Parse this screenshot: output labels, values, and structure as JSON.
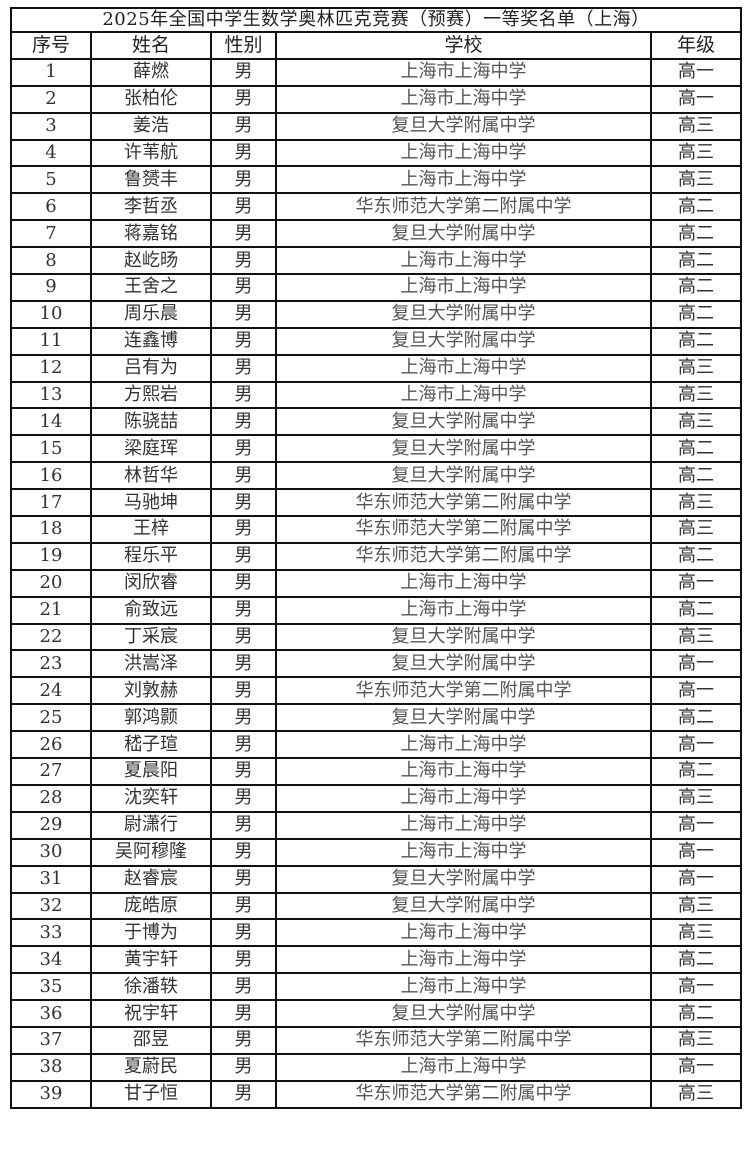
{
  "title": "2025年全国中学生数学奥林匹克竞赛（预赛）一等奖名单（上海）",
  "columns": [
    "序号",
    "姓名",
    "性别",
    "学校",
    "年级"
  ],
  "rows": [
    [
      "1",
      "薛燃",
      "男",
      "上海市上海中学",
      "高一"
    ],
    [
      "2",
      "张柏伦",
      "男",
      "上海市上海中学",
      "高一"
    ],
    [
      "3",
      "姜浩",
      "男",
      "复旦大学附属中学",
      "高三"
    ],
    [
      "4",
      "许苇航",
      "男",
      "上海市上海中学",
      "高三"
    ],
    [
      "5",
      "鲁赟丰",
      "男",
      "上海市上海中学",
      "高三"
    ],
    [
      "6",
      "李哲丞",
      "男",
      "华东师范大学第二附属中学",
      "高二"
    ],
    [
      "7",
      "蒋嘉铭",
      "男",
      "复旦大学附属中学",
      "高二"
    ],
    [
      "8",
      "赵屹旸",
      "男",
      "上海市上海中学",
      "高二"
    ],
    [
      "9",
      "王舍之",
      "男",
      "上海市上海中学",
      "高二"
    ],
    [
      "10",
      "周乐晨",
      "男",
      "复旦大学附属中学",
      "高二"
    ],
    [
      "11",
      "连鑫博",
      "男",
      "复旦大学附属中学",
      "高二"
    ],
    [
      "12",
      "吕有为",
      "男",
      "上海市上海中学",
      "高三"
    ],
    [
      "13",
      "方熙岩",
      "男",
      "上海市上海中学",
      "高三"
    ],
    [
      "14",
      "陈骁喆",
      "男",
      "复旦大学附属中学",
      "高三"
    ],
    [
      "15",
      "梁庭珲",
      "男",
      "复旦大学附属中学",
      "高二"
    ],
    [
      "16",
      "林哲华",
      "男",
      "复旦大学附属中学",
      "高二"
    ],
    [
      "17",
      "马驰坤",
      "男",
      "华东师范大学第二附属中学",
      "高三"
    ],
    [
      "18",
      "王梓",
      "男",
      "华东师范大学第二附属中学",
      "高三"
    ],
    [
      "19",
      "程乐平",
      "男",
      "华东师范大学第二附属中学",
      "高二"
    ],
    [
      "20",
      "闵欣睿",
      "男",
      "上海市上海中学",
      "高一"
    ],
    [
      "21",
      "俞致远",
      "男",
      "上海市上海中学",
      "高二"
    ],
    [
      "22",
      "丁采宸",
      "男",
      "复旦大学附属中学",
      "高三"
    ],
    [
      "23",
      "洪嵩泽",
      "男",
      "复旦大学附属中学",
      "高一"
    ],
    [
      "24",
      "刘敦赫",
      "男",
      "华东师范大学第二附属中学",
      "高一"
    ],
    [
      "25",
      "郭鸿颢",
      "男",
      "复旦大学附属中学",
      "高二"
    ],
    [
      "26",
      "嵇子瑄",
      "男",
      "上海市上海中学",
      "高一"
    ],
    [
      "27",
      "夏晨阳",
      "男",
      "上海市上海中学",
      "高二"
    ],
    [
      "28",
      "沈奕轩",
      "男",
      "上海市上海中学",
      "高三"
    ],
    [
      "29",
      "尉潇行",
      "男",
      "上海市上海中学",
      "高一"
    ],
    [
      "30",
      "吴阿穆隆",
      "男",
      "上海市上海中学",
      "高一"
    ],
    [
      "31",
      "赵睿宸",
      "男",
      "复旦大学附属中学",
      "高一"
    ],
    [
      "32",
      "庞皓原",
      "男",
      "复旦大学附属中学",
      "高三"
    ],
    [
      "33",
      "于博为",
      "男",
      "上海市上海中学",
      "高三"
    ],
    [
      "34",
      "黄宇轩",
      "男",
      "上海市上海中学",
      "高二"
    ],
    [
      "35",
      "徐潘轶",
      "男",
      "上海市上海中学",
      "高一"
    ],
    [
      "36",
      "祝宇轩",
      "男",
      "复旦大学附属中学",
      "高二"
    ],
    [
      "37",
      "邵昱",
      "男",
      "华东师范大学第二附属中学",
      "高三"
    ],
    [
      "38",
      "夏蔚民",
      "男",
      "上海市上海中学",
      "高一"
    ],
    [
      "39",
      "甘子恒",
      "男",
      "华东师范大学第二附属中学",
      "高三"
    ]
  ]
}
